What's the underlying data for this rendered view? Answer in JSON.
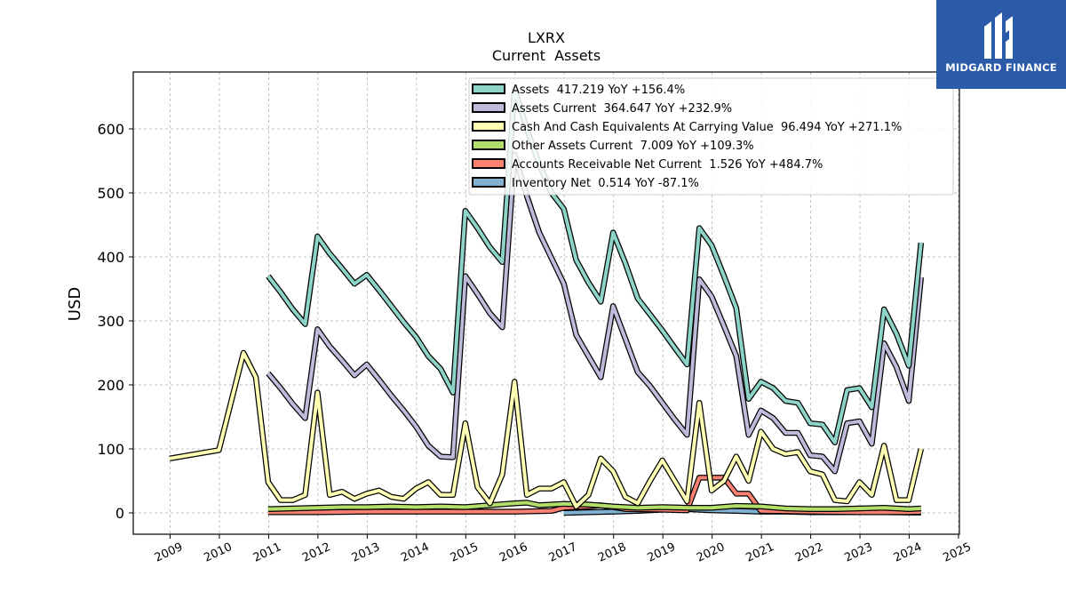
{
  "logo": {
    "text": "MIDGARD FINANCE",
    "bg_color": "#2a5aa8"
  },
  "chart_data": {
    "type": "line",
    "title": "LXRX",
    "subtitle": "Current  Assets",
    "ylabel": "USD",
    "xlabel": "",
    "xlim": [
      2008.6,
      2025.0
    ],
    "ylim": [
      -33,
      687
    ],
    "x_ticks": [
      2009,
      2010,
      2011,
      2012,
      2013,
      2014,
      2015,
      2016,
      2017,
      2018,
      2019,
      2020,
      2021,
      2022,
      2023,
      2024,
      2025
    ],
    "y_ticks": [
      0,
      100,
      200,
      300,
      400,
      500,
      600
    ],
    "grid": true,
    "legend_position": "top-right",
    "series": [
      {
        "name": "Assets  417.219 YoY +156.4%",
        "color": "#8dd3c7",
        "points": [
          [
            2010.99,
            370
          ],
          [
            2011.24,
            345
          ],
          [
            2011.49,
            318
          ],
          [
            2011.74,
            295
          ],
          [
            2011.99,
            432
          ],
          [
            2012.24,
            405
          ],
          [
            2012.49,
            382
          ],
          [
            2012.74,
            358
          ],
          [
            2012.99,
            372
          ],
          [
            2013.24,
            348
          ],
          [
            2013.49,
            323
          ],
          [
            2013.74,
            298
          ],
          [
            2013.99,
            275
          ],
          [
            2014.24,
            245
          ],
          [
            2014.49,
            225
          ],
          [
            2014.74,
            188
          ],
          [
            2014.99,
            472
          ],
          [
            2015.24,
            445
          ],
          [
            2015.49,
            415
          ],
          [
            2015.74,
            392
          ],
          [
            2015.99,
            662
          ],
          [
            2016.24,
            600
          ],
          [
            2016.49,
            545
          ],
          [
            2016.74,
            500
          ],
          [
            2016.99,
            475
          ],
          [
            2017.24,
            395
          ],
          [
            2017.49,
            360
          ],
          [
            2017.74,
            330
          ],
          [
            2017.99,
            438
          ],
          [
            2018.24,
            390
          ],
          [
            2018.49,
            335
          ],
          [
            2018.74,
            310
          ],
          [
            2018.99,
            285
          ],
          [
            2019.24,
            258
          ],
          [
            2019.49,
            232
          ],
          [
            2019.74,
            445
          ],
          [
            2019.99,
            418
          ],
          [
            2020.24,
            370
          ],
          [
            2020.49,
            320
          ],
          [
            2020.74,
            178
          ],
          [
            2020.99,
            205
          ],
          [
            2021.24,
            195
          ],
          [
            2021.49,
            175
          ],
          [
            2021.74,
            172
          ],
          [
            2021.99,
            140
          ],
          [
            2022.24,
            138
          ],
          [
            2022.49,
            110
          ],
          [
            2022.74,
            192
          ],
          [
            2022.99,
            195
          ],
          [
            2023.24,
            165
          ],
          [
            2023.49,
            318
          ],
          [
            2023.74,
            280
          ],
          [
            2023.99,
            230
          ],
          [
            2024.24,
            422
          ]
        ]
      },
      {
        "name": "Assets Current  364.647 YoY +232.9%",
        "color": "#bebada",
        "points": [
          [
            2010.99,
            218
          ],
          [
            2011.24,
            195
          ],
          [
            2011.49,
            170
          ],
          [
            2011.74,
            148
          ],
          [
            2011.99,
            287
          ],
          [
            2012.24,
            260
          ],
          [
            2012.49,
            238
          ],
          [
            2012.74,
            215
          ],
          [
            2012.99,
            232
          ],
          [
            2013.24,
            208
          ],
          [
            2013.49,
            183
          ],
          [
            2013.74,
            160
          ],
          [
            2013.99,
            135
          ],
          [
            2014.24,
            105
          ],
          [
            2014.49,
            88
          ],
          [
            2014.74,
            87
          ],
          [
            2014.99,
            370
          ],
          [
            2015.24,
            342
          ],
          [
            2015.49,
            312
          ],
          [
            2015.74,
            290
          ],
          [
            2015.99,
            560
          ],
          [
            2016.24,
            495
          ],
          [
            2016.49,
            438
          ],
          [
            2016.74,
            398
          ],
          [
            2016.99,
            358
          ],
          [
            2017.24,
            278
          ],
          [
            2017.49,
            245
          ],
          [
            2017.74,
            212
          ],
          [
            2017.99,
            323
          ],
          [
            2018.24,
            272
          ],
          [
            2018.49,
            220
          ],
          [
            2018.74,
            198
          ],
          [
            2018.99,
            172
          ],
          [
            2019.24,
            146
          ],
          [
            2019.49,
            122
          ],
          [
            2019.74,
            365
          ],
          [
            2019.99,
            338
          ],
          [
            2020.24,
            292
          ],
          [
            2020.49,
            245
          ],
          [
            2020.74,
            122
          ],
          [
            2020.99,
            160
          ],
          [
            2021.24,
            148
          ],
          [
            2021.49,
            125
          ],
          [
            2021.74,
            125
          ],
          [
            2021.99,
            90
          ],
          [
            2022.24,
            88
          ],
          [
            2022.49,
            65
          ],
          [
            2022.74,
            140
          ],
          [
            2022.99,
            143
          ],
          [
            2023.24,
            108
          ],
          [
            2023.49,
            265
          ],
          [
            2023.74,
            228
          ],
          [
            2023.99,
            175
          ],
          [
            2024.24,
            368
          ]
        ]
      },
      {
        "name": "Cash And Cash Equivalents At Carrying Value  96.494 YoY +271.1%",
        "color": "#ffffb3",
        "points": [
          [
            2008.99,
            85
          ],
          [
            2009.99,
            98
          ],
          [
            2010.49,
            250
          ],
          [
            2010.74,
            212
          ],
          [
            2010.99,
            48
          ],
          [
            2011.24,
            20
          ],
          [
            2011.49,
            20
          ],
          [
            2011.74,
            28
          ],
          [
            2011.99,
            188
          ],
          [
            2012.24,
            28
          ],
          [
            2012.49,
            33
          ],
          [
            2012.74,
            22
          ],
          [
            2012.99,
            30
          ],
          [
            2013.24,
            35
          ],
          [
            2013.49,
            25
          ],
          [
            2013.74,
            22
          ],
          [
            2013.99,
            38
          ],
          [
            2014.24,
            48
          ],
          [
            2014.49,
            28
          ],
          [
            2014.74,
            28
          ],
          [
            2014.99,
            140
          ],
          [
            2015.24,
            40
          ],
          [
            2015.49,
            15
          ],
          [
            2015.74,
            60
          ],
          [
            2015.99,
            205
          ],
          [
            2016.24,
            28
          ],
          [
            2016.49,
            38
          ],
          [
            2016.74,
            38
          ],
          [
            2016.99,
            48
          ],
          [
            2017.24,
            10
          ],
          [
            2017.49,
            28
          ],
          [
            2017.74,
            85
          ],
          [
            2017.99,
            65
          ],
          [
            2018.24,
            25
          ],
          [
            2018.49,
            15
          ],
          [
            2018.74,
            50
          ],
          [
            2018.99,
            82
          ],
          [
            2019.24,
            50
          ],
          [
            2019.49,
            18
          ],
          [
            2019.74,
            172
          ],
          [
            2019.99,
            35
          ],
          [
            2020.24,
            50
          ],
          [
            2020.49,
            88
          ],
          [
            2020.74,
            50
          ],
          [
            2020.99,
            127
          ],
          [
            2021.24,
            100
          ],
          [
            2021.49,
            92
          ],
          [
            2021.74,
            95
          ],
          [
            2021.99,
            65
          ],
          [
            2022.24,
            60
          ],
          [
            2022.49,
            20
          ],
          [
            2022.74,
            18
          ],
          [
            2022.99,
            48
          ],
          [
            2023.24,
            28
          ],
          [
            2023.49,
            105
          ],
          [
            2023.74,
            20
          ],
          [
            2023.99,
            20
          ],
          [
            2024.24,
            100
          ]
        ]
      },
      {
        "name": "Other Assets Current  7.009 YoY +109.3%",
        "color": "#b3de69",
        "points": [
          [
            2010.99,
            6
          ],
          [
            2011.49,
            7
          ],
          [
            2011.99,
            8
          ],
          [
            2012.49,
            9
          ],
          [
            2012.99,
            9
          ],
          [
            2013.49,
            10
          ],
          [
            2013.99,
            9
          ],
          [
            2014.49,
            10
          ],
          [
            2014.99,
            9
          ],
          [
            2015.49,
            12
          ],
          [
            2015.99,
            15
          ],
          [
            2016.24,
            16
          ],
          [
            2016.49,
            12
          ],
          [
            2016.99,
            14
          ],
          [
            2017.49,
            13
          ],
          [
            2017.99,
            10
          ],
          [
            2018.49,
            8
          ],
          [
            2018.99,
            9
          ],
          [
            2019.49,
            8
          ],
          [
            2019.99,
            8
          ],
          [
            2020.49,
            11
          ],
          [
            2020.99,
            10
          ],
          [
            2021.49,
            7
          ],
          [
            2021.99,
            6
          ],
          [
            2022.49,
            6
          ],
          [
            2022.99,
            7
          ],
          [
            2023.49,
            8
          ],
          [
            2023.99,
            6
          ],
          [
            2024.24,
            7
          ]
        ]
      },
      {
        "name": "Accounts Receivable Net Current  1.526 YoY +484.7%",
        "color": "#fb8072",
        "points": [
          [
            2010.99,
            1
          ],
          [
            2011.99,
            1
          ],
          [
            2012.99,
            2
          ],
          [
            2013.99,
            2
          ],
          [
            2014.99,
            2
          ],
          [
            2015.99,
            2
          ],
          [
            2016.74,
            3
          ],
          [
            2016.99,
            8
          ],
          [
            2017.49,
            10
          ],
          [
            2017.74,
            12
          ],
          [
            2018.24,
            6
          ],
          [
            2018.99,
            5
          ],
          [
            2019.49,
            4
          ],
          [
            2019.74,
            55
          ],
          [
            2020.24,
            55
          ],
          [
            2020.49,
            30
          ],
          [
            2020.74,
            30
          ],
          [
            2020.99,
            3
          ],
          [
            2021.99,
            2
          ],
          [
            2022.99,
            1
          ],
          [
            2023.99,
            1
          ],
          [
            2024.24,
            1.5
          ]
        ]
      },
      {
        "name": "Inventory Net  0.514 YoY -87.1%",
        "color": "#80b1d3",
        "points": [
          [
            2016.99,
            0
          ],
          [
            2017.49,
            1
          ],
          [
            2017.99,
            2
          ],
          [
            2018.49,
            3
          ],
          [
            2018.99,
            5
          ],
          [
            2019.49,
            6
          ],
          [
            2019.99,
            4
          ],
          [
            2020.49,
            3
          ],
          [
            2020.99,
            2
          ],
          [
            2021.49,
            2
          ],
          [
            2021.99,
            1
          ],
          [
            2022.49,
            1
          ],
          [
            2022.99,
            1
          ],
          [
            2023.49,
            1
          ],
          [
            2023.99,
            0.5
          ],
          [
            2024.24,
            0.5
          ]
        ]
      }
    ]
  }
}
